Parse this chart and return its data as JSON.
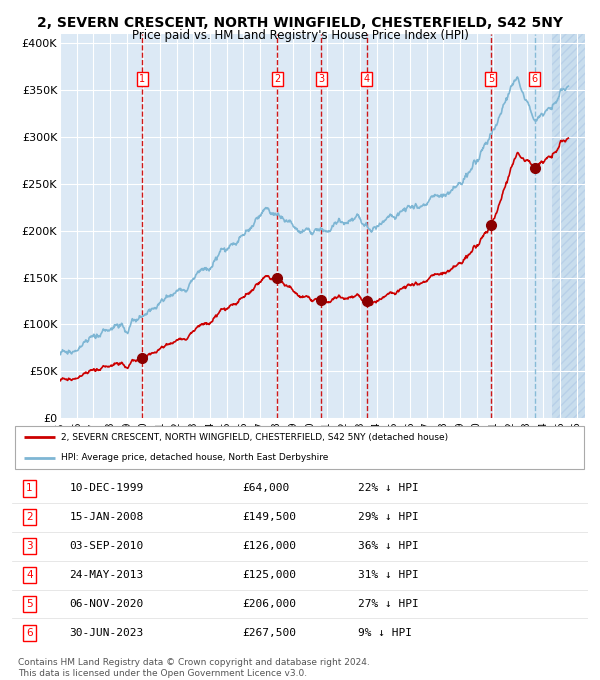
{
  "title": "2, SEVERN CRESCENT, NORTH WINGFIELD, CHESTERFIELD, S42 5NY",
  "subtitle": "Price paid vs. HM Land Registry's House Price Index (HPI)",
  "transactions": [
    {
      "num": 1,
      "date": 1999.94,
      "price": 64000,
      "label": "10-DEC-1999",
      "pct": "22%"
    },
    {
      "num": 2,
      "date": 2008.04,
      "price": 149500,
      "label": "15-JAN-2008",
      "pct": "29%"
    },
    {
      "num": 3,
      "date": 2010.67,
      "price": 126000,
      "label": "03-SEP-2010",
      "pct": "36%"
    },
    {
      "num": 4,
      "date": 2013.39,
      "price": 125000,
      "label": "24-MAY-2013",
      "pct": "31%"
    },
    {
      "num": 5,
      "date": 2020.85,
      "price": 206000,
      "label": "06-NOV-2020",
      "pct": "27%"
    },
    {
      "num": 6,
      "date": 2023.49,
      "price": 267500,
      "label": "30-JUN-2023",
      "pct": "9%"
    }
  ],
  "hpi_color": "#7eb6d4",
  "price_color": "#cc0000",
  "dot_color": "#8b0000",
  "vline_color": "#cc0000",
  "vline_last_color": "#7eb6d4",
  "bg_color": "#dce9f5",
  "grid_color": "#ffffff",
  "xmin": 1995.0,
  "xmax": 2026.5,
  "ymin": 0,
  "ymax": 410000,
  "yticks": [
    0,
    50000,
    100000,
    150000,
    200000,
    250000,
    300000,
    350000,
    400000
  ],
  "ytick_labels": [
    "£0",
    "£50K",
    "£100K",
    "£150K",
    "£200K",
    "£250K",
    "£300K",
    "£350K",
    "£400K"
  ],
  "xticks": [
    1995,
    1996,
    1997,
    1998,
    1999,
    2000,
    2001,
    2002,
    2003,
    2004,
    2005,
    2006,
    2007,
    2008,
    2009,
    2010,
    2011,
    2012,
    2013,
    2014,
    2015,
    2016,
    2017,
    2018,
    2019,
    2020,
    2021,
    2022,
    2023,
    2024,
    2025,
    2026
  ],
  "legend_line1": "2, SEVERN CRESCENT, NORTH WINGFIELD, CHESTERFIELD, S42 5NY (detached house)",
  "legend_line2": "HPI: Average price, detached house, North East Derbyshire",
  "footer1": "Contains HM Land Registry data © Crown copyright and database right 2024.",
  "footer2": "This data is licensed under the Open Government Licence v3.0."
}
